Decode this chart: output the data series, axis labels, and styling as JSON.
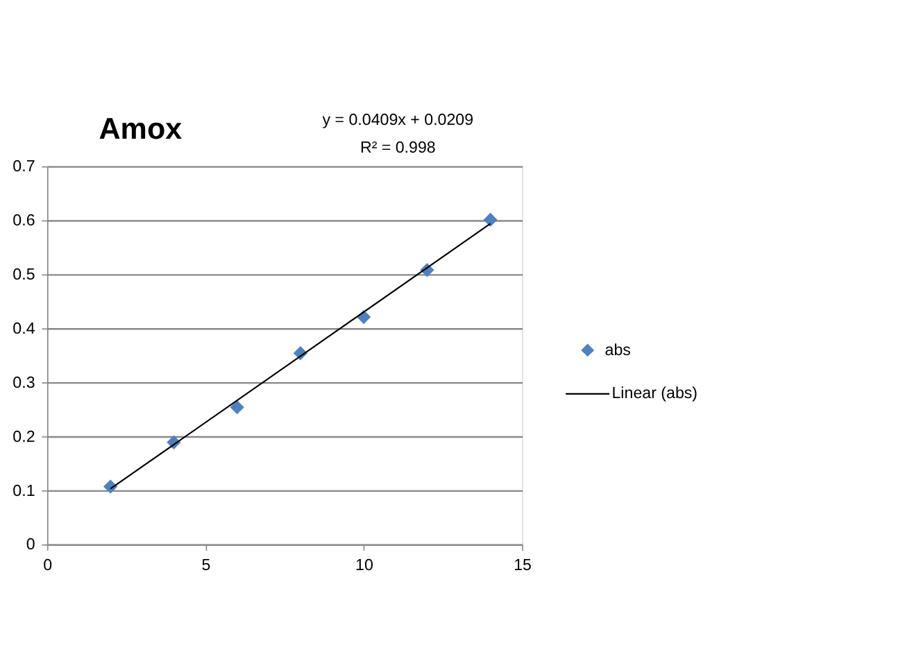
{
  "chart_data": {
    "type": "scatter",
    "title": "Amox",
    "annotations": [
      "y = 0.0409x + 0.0209",
      "R² = 0.998"
    ],
    "series": [
      {
        "name": "abs",
        "color": "#4f81bd",
        "marker": "diamond",
        "x": [
          2,
          4,
          6,
          8,
          10,
          12,
          14
        ],
        "values": [
          0.107,
          0.189,
          0.254,
          0.354,
          0.421,
          0.508,
          0.601
        ]
      },
      {
        "name": "Linear (abs)",
        "type": "line",
        "color": "#000000",
        "line_style": "solid",
        "x": [
          2,
          14
        ],
        "values": [
          0.103,
          0.594
        ]
      }
    ],
    "xlim": [
      0,
      15
    ],
    "xticks": [
      0,
      5,
      10,
      15
    ],
    "ylim": [
      0,
      0.7
    ],
    "yticks": [
      0,
      0.1,
      0.2,
      0.3,
      0.4,
      0.5,
      0.6,
      0.7
    ],
    "grid": "y",
    "legend": "right"
  }
}
